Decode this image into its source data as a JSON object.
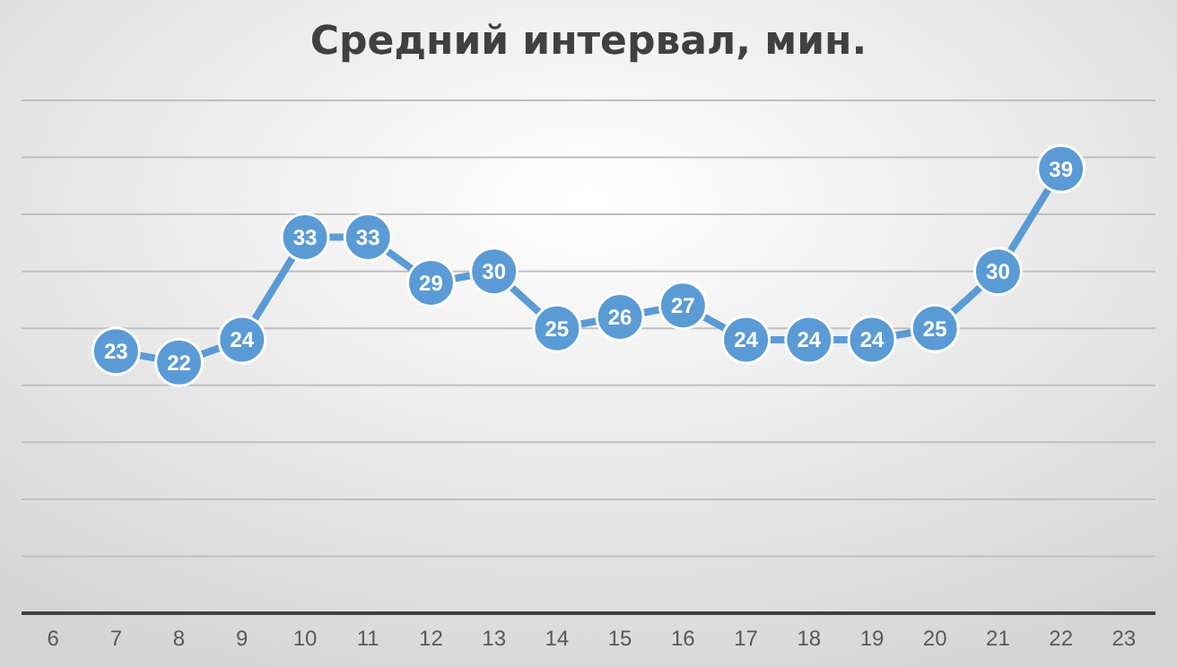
{
  "chart_data": {
    "type": "line",
    "title": "Средний интервал, мин.",
    "categories": [
      "6",
      "7",
      "8",
      "9",
      "10",
      "11",
      "12",
      "13",
      "14",
      "15",
      "16",
      "17",
      "18",
      "19",
      "20",
      "21",
      "22",
      "23"
    ],
    "series": [
      {
        "color": "#5b9bd5",
        "values": [
          null,
          23,
          22,
          24,
          33,
          33,
          29,
          30,
          25,
          26,
          27,
          24,
          24,
          24,
          25,
          30,
          39,
          null
        ]
      }
    ],
    "ylim": [
      0,
      45
    ],
    "yticks": [
      {
        "value": 0,
        "label": null
      },
      {
        "value": 5,
        "label": null
      },
      {
        "value": 10,
        "label": null
      },
      {
        "value": 15,
        "label": null
      },
      {
        "value": 20,
        "label": null
      },
      {
        "value": 25,
        "label": null
      },
      {
        "value": 30,
        "label": null
      },
      {
        "value": 35,
        "label": null
      },
      {
        "value": 40,
        "label": null
      },
      {
        "value": 45,
        "label": null
      }
    ],
    "grid": "y",
    "tick_labels": "x",
    "marker": "circle",
    "data_labels": true
  }
}
